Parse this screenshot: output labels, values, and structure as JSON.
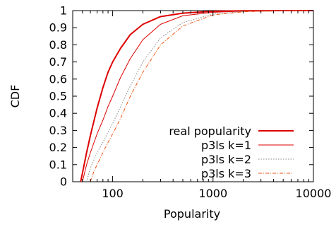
{
  "chart_data": {
    "type": "line",
    "title": "",
    "xlabel": "Popularity",
    "ylabel": "CDF",
    "x_scale": "log",
    "xlim": [
      40,
      10000
    ],
    "ylim": [
      0,
      1
    ],
    "x_ticks": [
      100,
      1000,
      10000
    ],
    "x_tick_labels": [
      "100",
      "1000",
      "10000"
    ],
    "y_ticks": [
      0,
      0.1,
      0.2,
      0.3,
      0.4,
      0.5,
      0.6,
      0.7,
      0.8,
      0.9,
      1
    ],
    "y_tick_labels": [
      "0",
      "0.1",
      "0.2",
      "0.3",
      "0.4",
      "0.5",
      "0.6",
      "0.7",
      "0.8",
      "0.9",
      "1"
    ],
    "grid": false,
    "legend_position": "bottom-right",
    "series": [
      {
        "name": "real popularity",
        "color": "#dd0000",
        "dash": "solid",
        "width": 2,
        "x": [
          48,
          50,
          55,
          60,
          70,
          80,
          90,
          100,
          120,
          150,
          200,
          300,
          500,
          1000,
          2000,
          5000,
          10000
        ],
        "y": [
          0,
          0.05,
          0.17,
          0.27,
          0.43,
          0.55,
          0.64,
          0.7,
          0.78,
          0.86,
          0.92,
          0.965,
          0.985,
          0.996,
          0.999,
          1.0,
          1.0
        ]
      },
      {
        "name": "p3ls k=1",
        "color": "#dd0000",
        "dash": "solid",
        "width": 1,
        "x": [
          50,
          55,
          60,
          70,
          80,
          90,
          100,
          120,
          150,
          200,
          300,
          500,
          1000,
          2000,
          5000,
          10000
        ],
        "y": [
          0,
          0.1,
          0.17,
          0.28,
          0.36,
          0.44,
          0.5,
          0.61,
          0.72,
          0.83,
          0.92,
          0.97,
          0.99,
          0.997,
          1.0,
          1.0
        ]
      },
      {
        "name": "p3ls k=2",
        "color": "#888888",
        "dash": "dotted",
        "width": 1,
        "x": [
          55,
          60,
          70,
          80,
          90,
          100,
          120,
          150,
          200,
          300,
          500,
          1000,
          2000,
          5000,
          10000
        ],
        "y": [
          0,
          0.08,
          0.17,
          0.23,
          0.29,
          0.34,
          0.44,
          0.56,
          0.7,
          0.84,
          0.93,
          0.98,
          0.995,
          1.0,
          1.0
        ]
      },
      {
        "name": "p3ls k=3",
        "color": "#ee5511",
        "dash": "dashdot",
        "width": 1,
        "x": [
          60,
          65,
          70,
          80,
          90,
          100,
          120,
          150,
          200,
          300,
          500,
          1000,
          2000,
          5000,
          10000
        ],
        "y": [
          0,
          0.06,
          0.1,
          0.17,
          0.23,
          0.28,
          0.37,
          0.5,
          0.64,
          0.8,
          0.91,
          0.975,
          0.993,
          0.999,
          1.0
        ]
      }
    ]
  }
}
